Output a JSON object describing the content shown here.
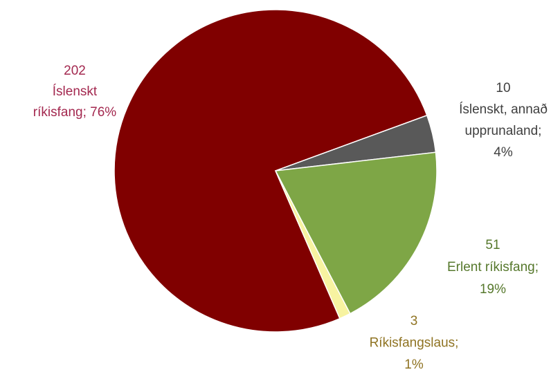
{
  "chart_data": {
    "type": "pie",
    "values": [
      202,
      10,
      51,
      3
    ],
    "label_lines": [
      [
        "Íslenskt",
        "ríkisfang; 76%"
      ],
      [
        "Íslenskt, annað",
        "upprunaland;",
        "4%"
      ],
      [
        "Erlent ríkisfang;",
        "19%"
      ],
      [
        "Ríkisfangslaus;",
        "1%"
      ]
    ],
    "colors": [
      "#800000",
      "#595959",
      "#7ea646",
      "#f7f3a1"
    ],
    "label_colors": [
      "#a3284f",
      "#3f3f3f",
      "#56782c",
      "#8f7322"
    ]
  }
}
